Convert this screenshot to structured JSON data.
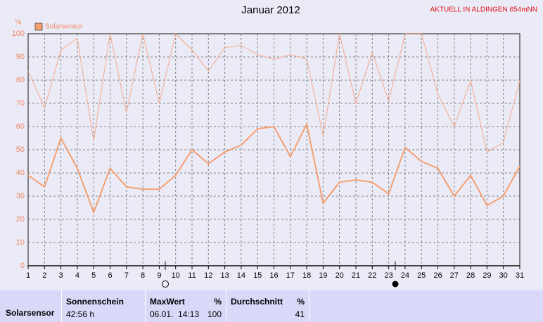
{
  "chart_data": {
    "type": "line",
    "title": "Januar 2012",
    "subtitle": "AKTUELL IN ALDINGEN 654mNN",
    "y_label": "%",
    "x": [
      1,
      2,
      3,
      4,
      5,
      6,
      7,
      8,
      9,
      10,
      11,
      12,
      13,
      14,
      15,
      16,
      17,
      18,
      19,
      20,
      21,
      22,
      23,
      24,
      25,
      26,
      27,
      28,
      29,
      30,
      31
    ],
    "xlim": [
      1,
      31
    ],
    "ylim": [
      0,
      100
    ],
    "yticks": [
      0,
      10,
      20,
      30,
      40,
      50,
      60,
      70,
      80,
      90,
      100
    ],
    "grid": true,
    "legend": "top-left",
    "series": [
      {
        "name": "Solarsensor",
        "color": "#f4a070",
        "width": 2,
        "values": [
          39,
          34,
          55,
          42,
          23,
          42,
          34,
          33,
          33,
          39,
          50,
          44,
          49,
          52,
          59,
          60,
          47,
          61,
          27,
          36,
          37,
          36,
          31,
          51,
          45,
          42,
          30,
          39,
          26,
          30,
          43
        ]
      },
      {
        "color": "#f6a888",
        "width": 1,
        "values": [
          84,
          68,
          93,
          98,
          54,
          100,
          66,
          100,
          70,
          100,
          93,
          84,
          94,
          95,
          91,
          89,
          91,
          89,
          56,
          100,
          70,
          92,
          71,
          100,
          100,
          74,
          60,
          80,
          49,
          53,
          80
        ]
      }
    ]
  },
  "table": {
    "row_label": "Solarsensor",
    "columns": [
      {
        "title": "Sonnenschein",
        "value": "42:56 h"
      },
      {
        "title": "MaxWert",
        "unit": "%",
        "time": "06.01.  14:13",
        "value": 100
      },
      {
        "title": "Durchschnitt",
        "unit": "%",
        "value": 41
      }
    ]
  }
}
